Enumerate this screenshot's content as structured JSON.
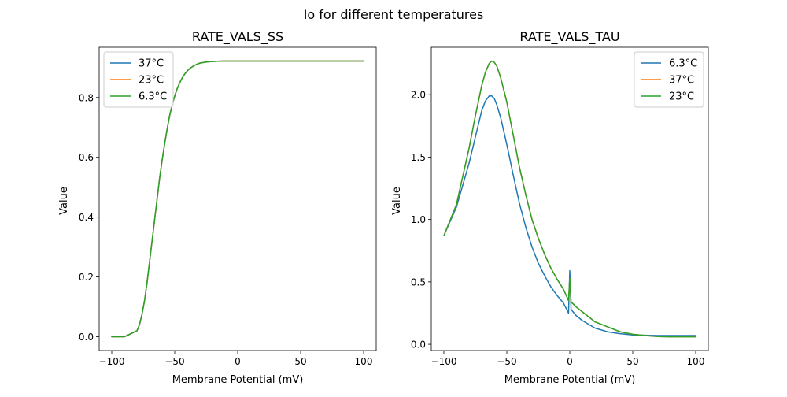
{
  "figure_title": "Io for different temperatures",
  "colors": {
    "blue": "#1f77b4",
    "orange": "#ff7f0e",
    "green": "#2ca02c"
  },
  "chart_data": [
    {
      "type": "line",
      "title": "RATE_VALS_SS",
      "xlabel": "Membrane Potential (mV)",
      "ylabel": "Value",
      "xlim": [
        -110,
        110
      ],
      "ylim": [
        -0.046,
        0.968
      ],
      "xticks": [
        -100,
        -50,
        0,
        50,
        100
      ],
      "xtick_labels": [
        "−100",
        "−50",
        "0",
        "50",
        "100"
      ],
      "yticks": [
        0.0,
        0.2,
        0.4,
        0.6,
        0.8
      ],
      "ytick_labels": [
        "0.0",
        "0.2",
        "0.4",
        "0.6",
        "0.8"
      ],
      "legend_position": "upper-left",
      "x": [
        -100,
        -90,
        -80,
        -78,
        -76,
        -74,
        -72,
        -70,
        -68,
        -66,
        -64,
        -62,
        -60,
        -58,
        -56,
        -54,
        -52,
        -50,
        -48,
        -46,
        -44,
        -42,
        -40,
        -38,
        -36,
        -34,
        -32,
        -30,
        -26,
        -22,
        -18,
        -14,
        -10,
        -5,
        0,
        10,
        20,
        40,
        60,
        80,
        100
      ],
      "series": [
        {
          "name": "37°C",
          "color": "#1f77b4",
          "values": [
            0.0,
            0.0,
            0.02,
            0.04,
            0.075,
            0.12,
            0.18,
            0.25,
            0.32,
            0.39,
            0.46,
            0.53,
            0.59,
            0.645,
            0.695,
            0.74,
            0.775,
            0.805,
            0.83,
            0.85,
            0.866,
            0.879,
            0.889,
            0.897,
            0.903,
            0.908,
            0.912,
            0.915,
            0.918,
            0.92,
            0.921,
            0.9215,
            0.922,
            0.922,
            0.922,
            0.922,
            0.922,
            0.922,
            0.922,
            0.922,
            0.922
          ]
        },
        {
          "name": "23°C",
          "color": "#ff7f0e",
          "values": [
            0.0,
            0.0,
            0.02,
            0.04,
            0.075,
            0.12,
            0.18,
            0.25,
            0.32,
            0.39,
            0.46,
            0.53,
            0.59,
            0.645,
            0.695,
            0.74,
            0.775,
            0.805,
            0.83,
            0.85,
            0.866,
            0.879,
            0.889,
            0.897,
            0.903,
            0.908,
            0.912,
            0.915,
            0.918,
            0.92,
            0.921,
            0.9215,
            0.922,
            0.922,
            0.922,
            0.922,
            0.922,
            0.922,
            0.922,
            0.922,
            0.922
          ]
        },
        {
          "name": "6.3°C",
          "color": "#2ca02c",
          "values": [
            0.0,
            0.0,
            0.02,
            0.04,
            0.075,
            0.12,
            0.18,
            0.25,
            0.32,
            0.39,
            0.46,
            0.53,
            0.59,
            0.645,
            0.695,
            0.74,
            0.775,
            0.805,
            0.83,
            0.85,
            0.866,
            0.879,
            0.889,
            0.897,
            0.903,
            0.908,
            0.912,
            0.915,
            0.918,
            0.92,
            0.921,
            0.9215,
            0.922,
            0.922,
            0.922,
            0.922,
            0.922,
            0.922,
            0.922,
            0.922,
            0.922
          ]
        }
      ]
    },
    {
      "type": "line",
      "title": "RATE_VALS_TAU",
      "xlabel": "Membrane Potential (mV)",
      "ylabel": "Value",
      "xlim": [
        -110,
        110
      ],
      "ylim": [
        -0.05,
        2.38
      ],
      "xticks": [
        -100,
        -50,
        0,
        50,
        100
      ],
      "xtick_labels": [
        "−100",
        "−50",
        "0",
        "50",
        "100"
      ],
      "yticks": [
        0.0,
        0.5,
        1.0,
        1.5,
        2.0
      ],
      "ytick_labels": [
        "0.0",
        "0.5",
        "1.0",
        "1.5",
        "2.0"
      ],
      "legend_position": "upper-right",
      "x": [
        -100,
        -90,
        -80,
        -75,
        -70,
        -67,
        -64,
        -62,
        -60,
        -58,
        -55,
        -50,
        -45,
        -40,
        -35,
        -30,
        -25,
        -20,
        -15,
        -10,
        -5,
        -1,
        0,
        1,
        5,
        10,
        20,
        30,
        40,
        50,
        60,
        70,
        80,
        90,
        100
      ],
      "series": [
        {
          "name": "6.3°C",
          "color": "#1f77b4",
          "values": [
            0.87,
            1.1,
            1.45,
            1.66,
            1.87,
            1.95,
            1.99,
            1.99,
            1.97,
            1.92,
            1.82,
            1.6,
            1.36,
            1.13,
            0.94,
            0.78,
            0.65,
            0.55,
            0.46,
            0.39,
            0.33,
            0.25,
            0.59,
            0.28,
            0.23,
            0.19,
            0.13,
            0.1,
            0.085,
            0.075,
            0.072,
            0.07,
            0.07,
            0.07,
            0.07
          ]
        },
        {
          "name": "37°C",
          "color": "#ff7f0e",
          "values": [
            0.87,
            1.12,
            1.57,
            1.83,
            2.07,
            2.18,
            2.25,
            2.27,
            2.26,
            2.23,
            2.14,
            1.94,
            1.68,
            1.42,
            1.2,
            1.0,
            0.85,
            0.72,
            0.61,
            0.52,
            0.44,
            0.35,
            0.53,
            0.34,
            0.3,
            0.26,
            0.18,
            0.14,
            0.1,
            0.08,
            0.07,
            0.062,
            0.06,
            0.06,
            0.06
          ]
        },
        {
          "name": "23°C",
          "color": "#2ca02c",
          "values": [
            0.87,
            1.12,
            1.57,
            1.83,
            2.07,
            2.18,
            2.25,
            2.27,
            2.26,
            2.23,
            2.14,
            1.94,
            1.68,
            1.42,
            1.2,
            1.0,
            0.85,
            0.72,
            0.61,
            0.52,
            0.44,
            0.35,
            0.53,
            0.34,
            0.3,
            0.26,
            0.18,
            0.14,
            0.1,
            0.08,
            0.07,
            0.062,
            0.06,
            0.06,
            0.06
          ]
        }
      ]
    }
  ]
}
